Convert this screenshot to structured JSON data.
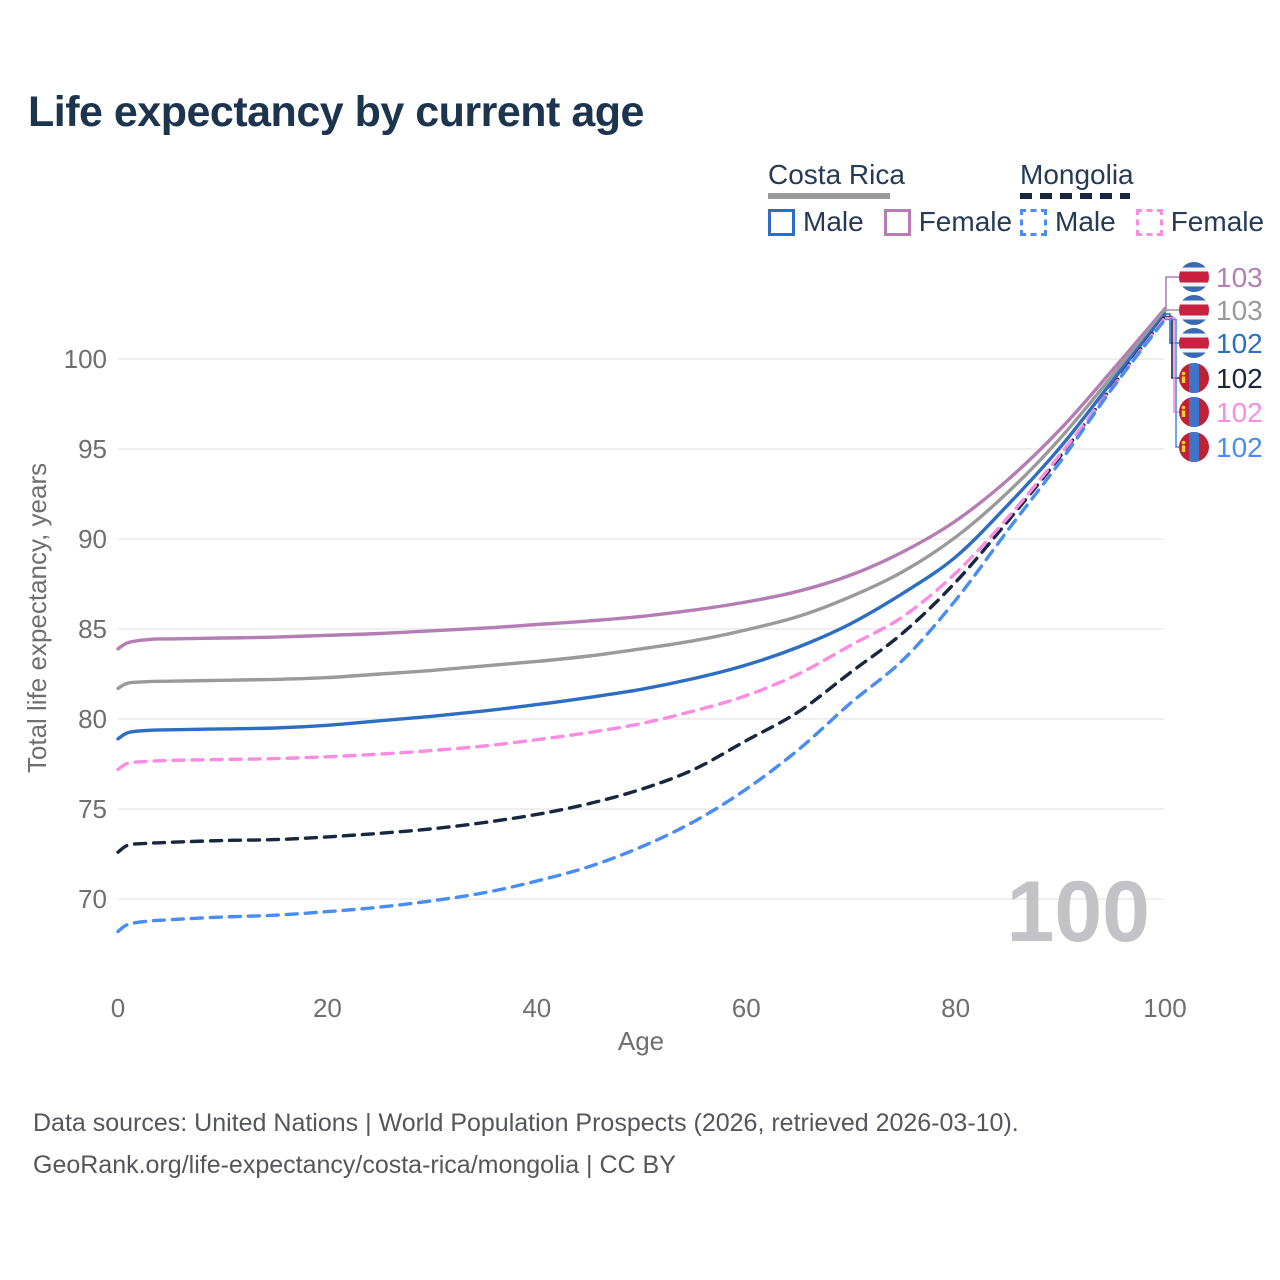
{
  "page": {
    "title": "Life expectancy by current age",
    "watermark": "100",
    "footer_line1": "Data sources: United Nations | World Population Prospects (2026, retrieved 2026-03-10).",
    "footer_line2": "GeoRank.org/life-expectancy/costa-rica/mongolia | CC BY"
  },
  "colors": {
    "title_text": "#1d344f",
    "legend_text": "#243a55",
    "axis_text": "#6e6e73",
    "gridline": "#eaeaec",
    "footer_text": "#55565c",
    "watermark": "#c3c3c7",
    "costa_rica_male": "#2d6dc2",
    "costa_rica_female": "#b47eb5",
    "costa_rica_both": "#9a9a9a",
    "mongolia_male": "#4a8df2",
    "mongolia_female": "#fb8ce0",
    "mongolia_both": "#18273f",
    "flag_cr_blue": "#3a69b3",
    "flag_cr_red": "#c8203e",
    "flag_mn_red": "#bf2033",
    "flag_mn_blue": "#3f74c8",
    "flag_mn_yellow": "#ffd028"
  },
  "legend": {
    "groups": [
      {
        "name": "Costa Rica",
        "line_style": "solid",
        "underline_color": "#9a9a9a",
        "items": [
          {
            "label": "Male",
            "color": "#2d6dc2",
            "dashed": false
          },
          {
            "label": "Female",
            "color": "#b47eb5",
            "dashed": false
          }
        ]
      },
      {
        "name": "Mongolia",
        "line_style": "dashed",
        "underline_color": "#18273f",
        "items": [
          {
            "label": "Male",
            "color": "#4a8df2",
            "dashed": true
          },
          {
            "label": "Female",
            "color": "#fb8ce0",
            "dashed": true
          }
        ]
      }
    ]
  },
  "chart_data": {
    "type": "line",
    "title": "Life expectancy by current age",
    "xlabel": "Age",
    "ylabel": "Total life expectancy, years",
    "xticks": [
      0,
      20,
      40,
      60,
      80,
      100
    ],
    "yticks": [
      70,
      75,
      80,
      85,
      90,
      95,
      100
    ],
    "xlim": [
      0,
      100
    ],
    "grid": "horizontal",
    "legend_position": "top-right",
    "x": [
      0,
      1,
      3,
      5,
      10,
      15,
      20,
      25,
      30,
      35,
      40,
      45,
      50,
      55,
      60,
      65,
      70,
      75,
      80,
      85,
      90,
      95,
      100
    ],
    "series": [
      {
        "name": "Costa Rica Female",
        "color": "#b47eb5",
        "dashed": false,
        "flag": "costa-rica",
        "end_label": "103",
        "values": [
          83.9,
          84.25,
          84.42,
          84.45,
          84.5,
          84.55,
          84.65,
          84.75,
          84.9,
          85.05,
          85.25,
          85.45,
          85.7,
          86.05,
          86.5,
          87.1,
          88.0,
          89.3,
          91.0,
          93.3,
          96.1,
          99.4,
          102.8
        ]
      },
      {
        "name": "Costa Rica Both sexes",
        "color": "#9a9a9a",
        "dashed": false,
        "flag": "costa-rica",
        "end_label": "103",
        "values": [
          81.7,
          82.0,
          82.08,
          82.1,
          82.15,
          82.2,
          82.3,
          82.5,
          82.7,
          82.95,
          83.2,
          83.5,
          83.9,
          84.35,
          84.95,
          85.7,
          86.8,
          88.2,
          90.1,
          92.6,
          95.6,
          99.1,
          102.7
        ]
      },
      {
        "name": "Costa Rica Male",
        "color": "#2d6dc2",
        "dashed": false,
        "flag": "costa-rica",
        "end_label": "102",
        "values": [
          78.9,
          79.25,
          79.37,
          79.4,
          79.45,
          79.5,
          79.65,
          79.9,
          80.15,
          80.45,
          80.8,
          81.2,
          81.65,
          82.25,
          83.0,
          84.0,
          85.3,
          87.0,
          89.0,
          91.9,
          95.1,
          98.8,
          102.5
        ]
      },
      {
        "name": "Mongolia Both sexes",
        "color": "#18273f",
        "dashed": true,
        "flag": "mongolia",
        "end_label": "102",
        "values": [
          72.6,
          73.0,
          73.1,
          73.15,
          73.25,
          73.3,
          73.45,
          73.65,
          73.9,
          74.25,
          74.7,
          75.3,
          76.1,
          77.2,
          78.8,
          80.4,
          82.6,
          84.8,
          87.6,
          91.0,
          94.6,
          98.5,
          102.35
        ]
      },
      {
        "name": "Mongolia Female",
        "color": "#fb8ce0",
        "dashed": true,
        "flag": "mongolia",
        "end_label": "102",
        "values": [
          77.2,
          77.55,
          77.65,
          77.7,
          77.75,
          77.8,
          77.9,
          78.05,
          78.25,
          78.5,
          78.85,
          79.25,
          79.75,
          80.45,
          81.3,
          82.5,
          84.1,
          85.7,
          88.1,
          91.2,
          94.7,
          98.45,
          102.3
        ]
      },
      {
        "name": "Mongolia Male",
        "color": "#4a8df2",
        "dashed": true,
        "flag": "mongolia",
        "end_label": "102",
        "values": [
          68.2,
          68.6,
          68.78,
          68.85,
          69.0,
          69.1,
          69.3,
          69.55,
          69.9,
          70.35,
          71.0,
          71.8,
          72.9,
          74.3,
          76.1,
          78.3,
          80.9,
          83.3,
          86.6,
          90.5,
          94.3,
          98.4,
          102.2
        ]
      }
    ]
  }
}
